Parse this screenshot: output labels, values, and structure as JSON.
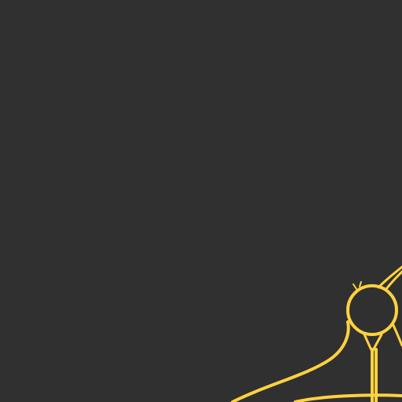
{
  "map": {
    "background_color": "#303030",
    "road_color": "#ffd23f",
    "features": [
      {
        "kind": "roundabout"
      },
      {
        "kind": "road"
      },
      {
        "kind": "road"
      },
      {
        "kind": "road"
      },
      {
        "kind": "road"
      },
      {
        "kind": "road"
      },
      {
        "kind": "road"
      }
    ]
  }
}
